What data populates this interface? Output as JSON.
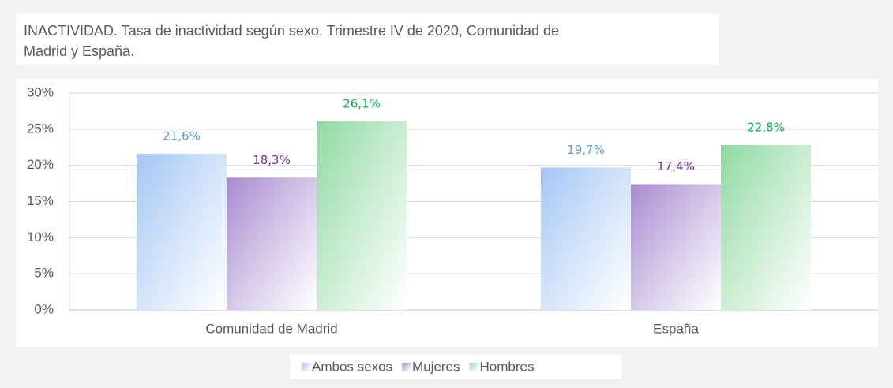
{
  "chart_data": {
    "type": "bar",
    "title": "INACTIVIDAD. Tasa de inactividad según sexo. Trimestre IV de 2020, Comunidad de Madrid y España.",
    "categories": [
      "Comunidad de Madrid",
      "España"
    ],
    "series": [
      {
        "name": "Ambos sexos",
        "color": "#a4c6f4",
        "label_color": "#5b9bd5",
        "values": [
          21.6,
          19.7
        ],
        "value_labels": [
          "21,6%",
          "19,7%"
        ]
      },
      {
        "name": "Mujeres",
        "color": "#a98ad0",
        "label_color": "#7030a0",
        "values": [
          18.3,
          17.4
        ],
        "value_labels": [
          "18,3%",
          "17,4%"
        ]
      },
      {
        "name": "Hombres",
        "color": "#8fd9a0",
        "label_color": "#00b050",
        "values": [
          26.1,
          22.8
        ],
        "value_labels": [
          "26,1%",
          "22,8%"
        ]
      }
    ],
    "ylim": [
      0,
      30
    ],
    "yticks": [
      {
        "value": 0,
        "label": "0%"
      },
      {
        "value": 5,
        "label": "5%"
      },
      {
        "value": 10,
        "label": "10%"
      },
      {
        "value": 15,
        "label": "15%"
      },
      {
        "value": 20,
        "label": "20%"
      },
      {
        "value": 25,
        "label": "25%"
      },
      {
        "value": 30,
        "label": "30%"
      }
    ],
    "grid": true,
    "legend": "bottom"
  }
}
